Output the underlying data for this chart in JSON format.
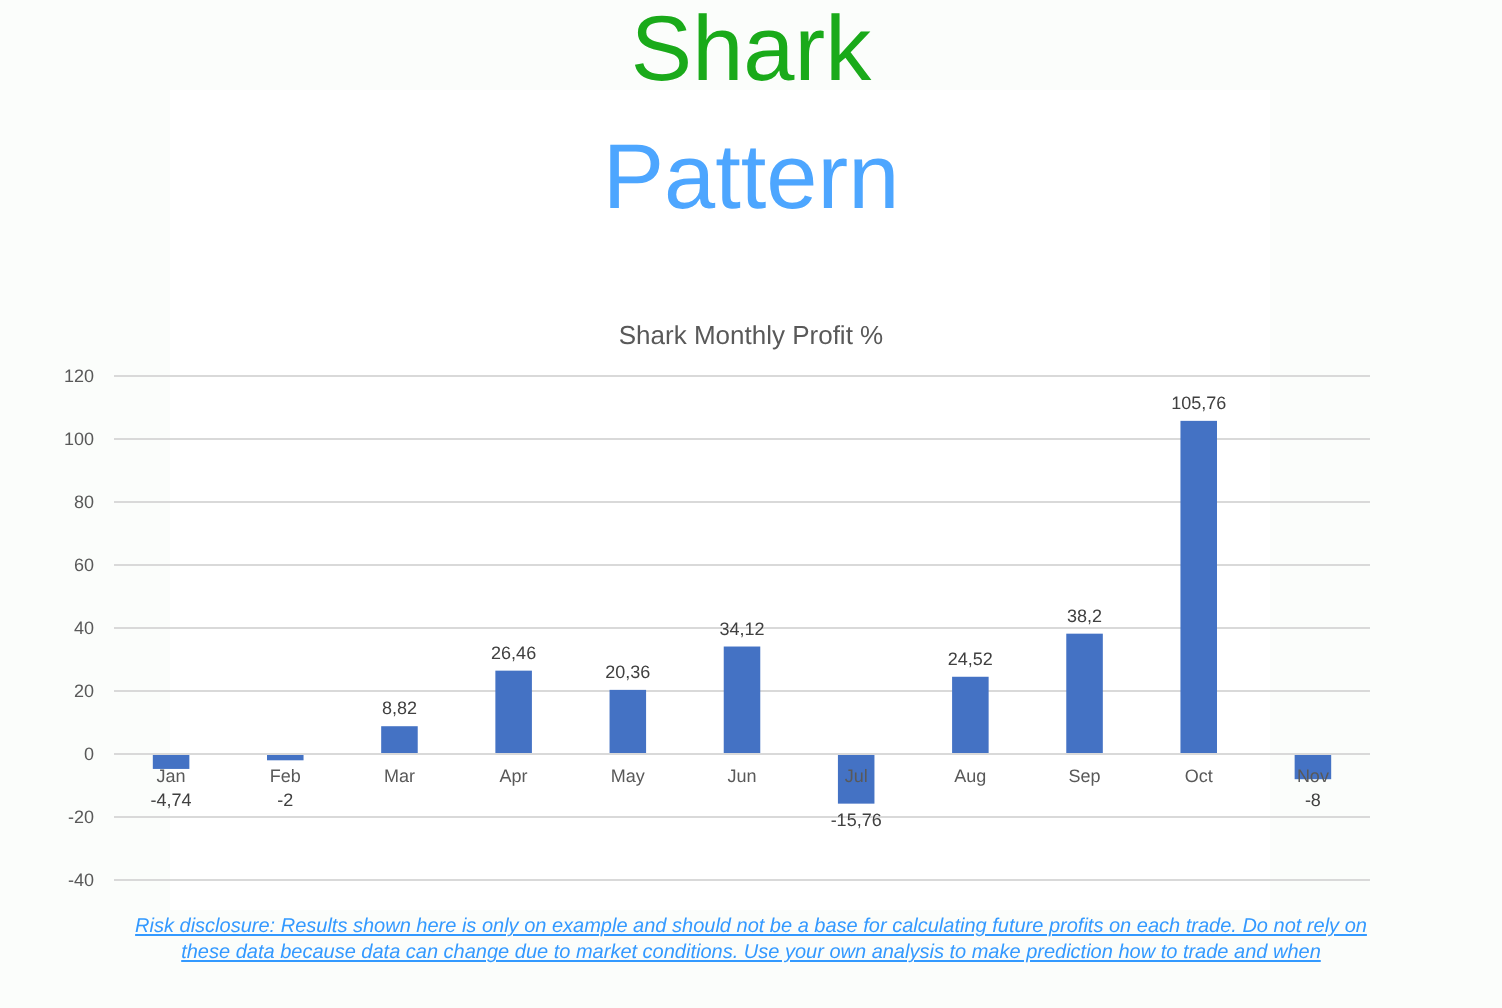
{
  "chart_data": {
    "type": "bar",
    "title": "Shark Pattern",
    "subtitle": "Shark Monthly Profit %",
    "categories": [
      "Jan",
      "Feb",
      "Mar",
      "Apr",
      "May",
      "Jun",
      "Jul",
      "Aug",
      "Sep",
      "Oct",
      "Nov"
    ],
    "values": [
      -4.74,
      -2,
      8.82,
      26.46,
      20.36,
      34.12,
      -15.76,
      24.52,
      38.2,
      105.76,
      -8
    ],
    "value_labels": [
      "-4,74",
      "-2",
      "8,82",
      "26,46",
      "20,36",
      "34,12",
      "-15,76",
      "24,52",
      "38,2",
      "105,76",
      "-8"
    ],
    "color": "#4472c4",
    "ylim": [
      -40,
      120
    ],
    "yticks": [
      -40,
      -20,
      0,
      20,
      40,
      60,
      80,
      100,
      120
    ],
    "grid": "y",
    "annotations": [
      "Risk disclosure: Results shown here is only on example and should not be a base for calculating future profits on each trade. Do not rely on these data because data can change due to market conditions. Use your own analysis to make prediction how to trade and when"
    ]
  }
}
